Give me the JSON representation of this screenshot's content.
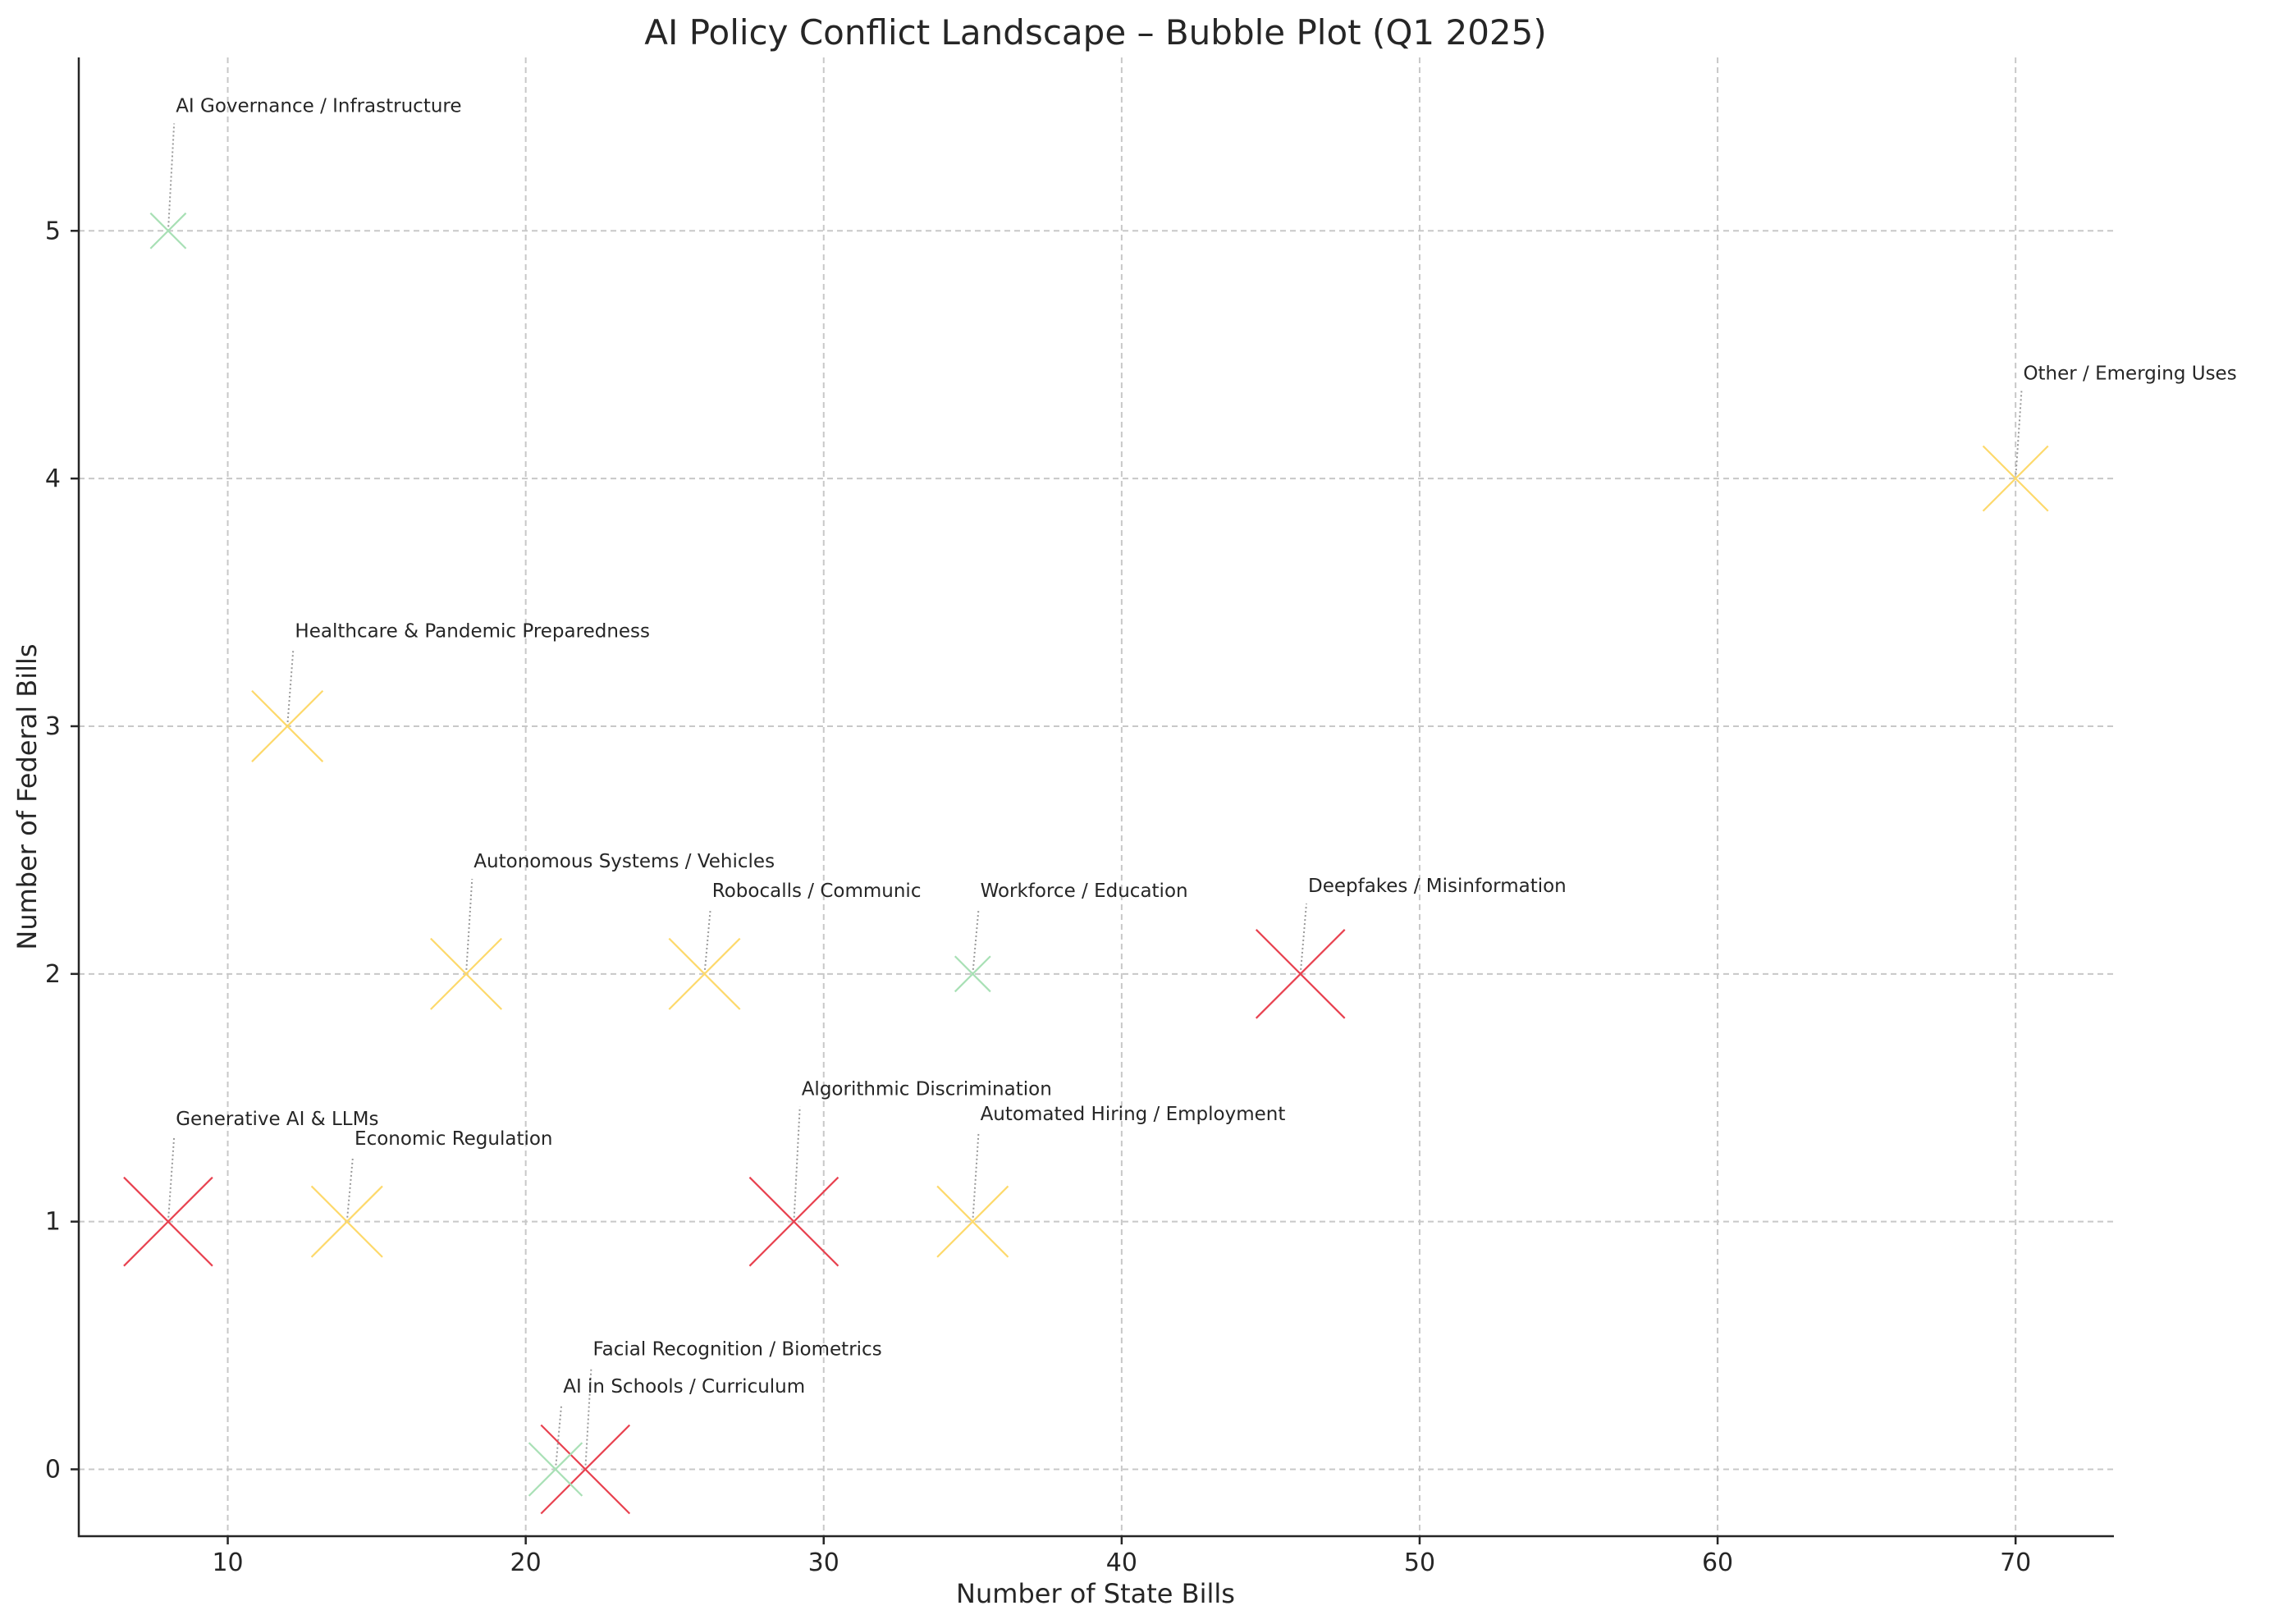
{
  "chart_data": {
    "type": "scatter",
    "title": "AI Policy Conflict Landscape – Bubble Plot (Q1 2025)",
    "xlabel": "Number of State Bills",
    "ylabel": "Number of Federal Bills",
    "xlim": [
      5,
      73.3
    ],
    "ylim": [
      -0.27,
      5.7
    ],
    "xticks": [
      10,
      20,
      30,
      40,
      50,
      60,
      70
    ],
    "yticks": [
      0,
      1,
      2,
      3,
      4,
      5
    ],
    "grid": true,
    "marker": "x",
    "colors": {
      "red": "#e8414f",
      "yellow": "#fdd96b",
      "green": "#a8e0b5"
    },
    "points": [
      {
        "label": "AI Governance / Infrastructure",
        "x": 8,
        "y": 5,
        "size": 0.6,
        "color": "green",
        "label_dx": 0.2,
        "label_dy": 0.48
      },
      {
        "label": "Other / Emerging Uses",
        "x": 70,
        "y": 4,
        "size": 1.1,
        "color": "yellow",
        "label_dx": 0.2,
        "label_dy": 0.4
      },
      {
        "label": "Healthcare & Pandemic Preparedness",
        "x": 12,
        "y": 3,
        "size": 1.2,
        "color": "yellow",
        "label_dx": 0.2,
        "label_dy": 0.36
      },
      {
        "label": "Autonomous Systems / Vehicles",
        "x": 18,
        "y": 2,
        "size": 1.2,
        "color": "yellow",
        "label_dx": 0.2,
        "label_dy": 0.43
      },
      {
        "label": "Robocalls / Communications",
        "x": 26,
        "y": 2,
        "size": 1.2,
        "color": "yellow",
        "label_dx": 0.2,
        "label_dy": 0.31,
        "clip_x": 33.3
      },
      {
        "label": "Workforce / Education",
        "x": 35,
        "y": 2,
        "size": 0.6,
        "color": "green",
        "label_dx": 0.2,
        "label_dy": 0.31
      },
      {
        "label": "Deepfakes / Misinformation",
        "x": 46,
        "y": 2,
        "size": 1.5,
        "color": "red",
        "label_dx": 0.2,
        "label_dy": 0.33
      },
      {
        "label": "Generative AI & LLMs",
        "x": 8,
        "y": 1,
        "size": 1.5,
        "color": "red",
        "label_dx": 0.2,
        "label_dy": 0.39
      },
      {
        "label": "Economic Regulation",
        "x": 14,
        "y": 1,
        "size": 1.2,
        "color": "yellow",
        "label_dx": 0.2,
        "label_dy": 0.31
      },
      {
        "label": "Algorithmic Discrimination",
        "x": 29,
        "y": 1,
        "size": 1.5,
        "color": "red",
        "label_dx": 0.2,
        "label_dy": 0.51
      },
      {
        "label": "Automated Hiring / Employment",
        "x": 35,
        "y": 1,
        "size": 1.2,
        "color": "yellow",
        "label_dx": 0.2,
        "label_dy": 0.41
      },
      {
        "label": "Facial Recognition / Biometrics",
        "x": 22,
        "y": 0,
        "size": 1.5,
        "color": "red",
        "label_dx": 0.2,
        "label_dy": 0.46
      },
      {
        "label": "AI in Schools / Curriculum",
        "x": 21,
        "y": 0,
        "size": 0.9,
        "color": "green",
        "label_dx": 0.2,
        "label_dy": 0.31
      }
    ]
  }
}
